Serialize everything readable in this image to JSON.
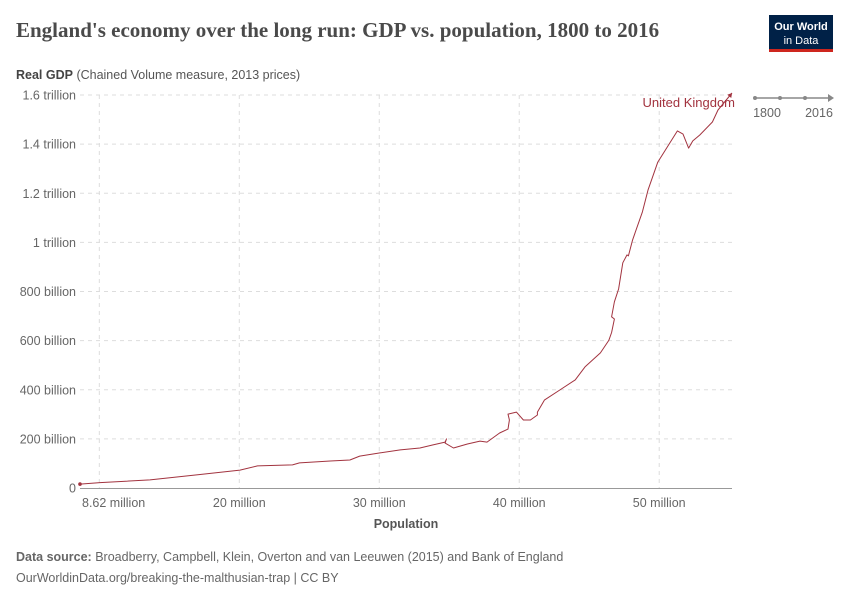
{
  "header": {
    "title": "England's economy over the long run: GDP vs. population, 1800 to 2016",
    "logo_line1": "Our World",
    "logo_line2": "in Data"
  },
  "timeline": {
    "start": "1800",
    "end": "2016"
  },
  "footer": {
    "source_label": "Data source:",
    "source_text": " Broadberry, Campbell, Klein, Overton and van Leeuwen (2015) and Bank of England",
    "url_text": "OurWorldinData.org/breaking-the-malthusian-trap | CC BY"
  },
  "chart_data": {
    "type": "line",
    "title": "England's economy over the long run: GDP vs. population, 1800 to 2016",
    "ylabel_bold": "Real GDP",
    "ylabel_rest": " (Chained Volume measure, 2013 prices)",
    "xlabel": "Population",
    "xlim": [
      8.62,
      55.2
    ],
    "ylim": [
      0,
      1.6
    ],
    "x_unit": "million",
    "y_unit": "trillion",
    "grid": true,
    "x_ticks": [
      {
        "v": 8.62,
        "label": "8.62 million"
      },
      {
        "v": 10,
        "label": ""
      },
      {
        "v": 20,
        "label": "20 million"
      },
      {
        "v": 30,
        "label": "30 million"
      },
      {
        "v": 40,
        "label": "40 million"
      },
      {
        "v": 50,
        "label": "50 million"
      }
    ],
    "y_ticks": [
      {
        "v": 0,
        "label": "0"
      },
      {
        "v": 0.2,
        "label": "200 billion"
      },
      {
        "v": 0.4,
        "label": "400 billion"
      },
      {
        "v": 0.6,
        "label": "600 billion"
      },
      {
        "v": 0.8,
        "label": "800 billion"
      },
      {
        "v": 1.0,
        "label": "1 trillion"
      },
      {
        "v": 1.2,
        "label": "1.2 trillion"
      },
      {
        "v": 1.4,
        "label": "1.4 trillion"
      },
      {
        "v": 1.6,
        "label": "1.6 trillion"
      }
    ],
    "series": [
      {
        "name": "United Kingdom",
        "color": "#a2333f",
        "points": [
          [
            8.62,
            0.016
          ],
          [
            10.05,
            0.022
          ],
          [
            13.62,
            0.033
          ],
          [
            17.2,
            0.055
          ],
          [
            20.05,
            0.073
          ],
          [
            21.3,
            0.09
          ],
          [
            23.8,
            0.094
          ],
          [
            24.3,
            0.102
          ],
          [
            26.5,
            0.11
          ],
          [
            27.9,
            0.114
          ],
          [
            28.6,
            0.13
          ],
          [
            30.05,
            0.143
          ],
          [
            31.5,
            0.155
          ],
          [
            32.9,
            0.163
          ],
          [
            33.8,
            0.175
          ],
          [
            34.7,
            0.187
          ],
          [
            34.8,
            0.2
          ],
          [
            34.7,
            0.183
          ],
          [
            35.3,
            0.163
          ],
          [
            36.3,
            0.179
          ],
          [
            37.2,
            0.191
          ],
          [
            37.7,
            0.187
          ],
          [
            38.6,
            0.224
          ],
          [
            39.2,
            0.24
          ],
          [
            39.3,
            0.277
          ],
          [
            39.2,
            0.301
          ],
          [
            39.8,
            0.309
          ],
          [
            40.3,
            0.277
          ],
          [
            40.8,
            0.277
          ],
          [
            41.3,
            0.297
          ],
          [
            41.3,
            0.309
          ],
          [
            41.8,
            0.358
          ],
          [
            42.9,
            0.399
          ],
          [
            44.0,
            0.44
          ],
          [
            44.7,
            0.493
          ],
          [
            45.8,
            0.55
          ],
          [
            46.4,
            0.601
          ],
          [
            46.6,
            0.633
          ],
          [
            46.8,
            0.688
          ],
          [
            46.6,
            0.697
          ],
          [
            46.8,
            0.758
          ],
          [
            47.1,
            0.81
          ],
          [
            47.4,
            0.917
          ],
          [
            47.7,
            0.949
          ],
          [
            47.8,
            0.945
          ],
          [
            48.1,
            1.01
          ],
          [
            48.8,
            1.124
          ],
          [
            49.2,
            1.213
          ],
          [
            49.9,
            1.327
          ],
          [
            51.3,
            1.454
          ],
          [
            51.7,
            1.441
          ],
          [
            52.1,
            1.384
          ],
          [
            52.4,
            1.413
          ],
          [
            52.9,
            1.437
          ],
          [
            53.8,
            1.49
          ],
          [
            54.2,
            1.539
          ],
          [
            55.2,
            1.608
          ]
        ]
      }
    ]
  }
}
